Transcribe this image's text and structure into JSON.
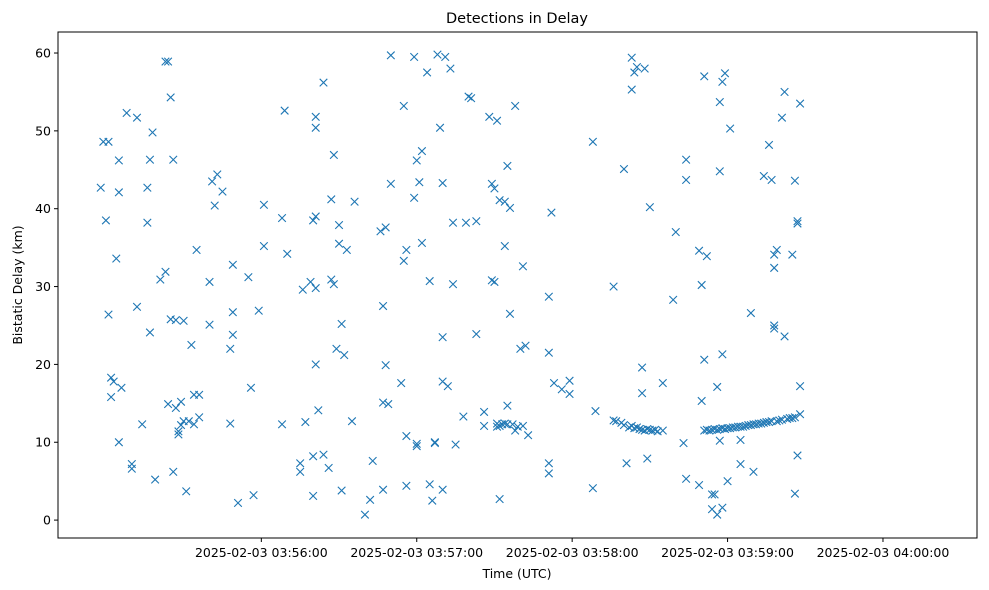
{
  "chart_data": {
    "type": "scatter",
    "title": "Detections in Delay",
    "xlabel": "Time (UTC)",
    "ylabel": "Bistatic Delay (km)",
    "x_unit": "seconds after 2025-02-03 03:55:00 (UTC)",
    "xlim": [
      -18.5,
      336.3
    ],
    "ylim": [
      -2.3,
      62.7
    ],
    "x_ticks": [
      {
        "value": 60,
        "label": "2025-02-03 03:56:00"
      },
      {
        "value": 120,
        "label": "2025-02-03 03:57:00"
      },
      {
        "value": 180,
        "label": "2025-02-03 03:58:00"
      },
      {
        "value": 240,
        "label": "2025-02-03 03:59:00"
      },
      {
        "value": 300,
        "label": "2025-02-03 04:00:00"
      }
    ],
    "y_ticks": [
      0,
      10,
      20,
      30,
      40,
      50,
      60
    ],
    "grid": false,
    "marker": "x",
    "color": "#1f77b4",
    "points": [
      [
        -2,
        42.7
      ],
      [
        -1,
        48.6
      ],
      [
        0,
        38.5
      ],
      [
        1,
        26.4
      ],
      [
        1,
        48.6
      ],
      [
        2,
        18.3
      ],
      [
        2,
        15.8
      ],
      [
        3,
        17.8
      ],
      [
        4,
        33.6
      ],
      [
        5,
        46.2
      ],
      [
        5,
        42.1
      ],
      [
        5,
        10.0
      ],
      [
        6,
        17.0
      ],
      [
        8,
        52.3
      ],
      [
        10,
        7.2
      ],
      [
        10,
        6.6
      ],
      [
        12,
        51.7
      ],
      [
        12,
        27.4
      ],
      [
        14,
        12.3
      ],
      [
        16,
        42.7
      ],
      [
        16,
        38.2
      ],
      [
        17,
        46.3
      ],
      [
        17,
        24.1
      ],
      [
        18,
        49.8
      ],
      [
        19,
        5.2
      ],
      [
        21,
        30.9
      ],
      [
        23,
        31.9
      ],
      [
        23,
        58.9
      ],
      [
        24,
        58.9
      ],
      [
        24,
        14.9
      ],
      [
        25,
        54.3
      ],
      [
        25,
        25.8
      ],
      [
        26,
        46.3
      ],
      [
        26,
        6.2
      ],
      [
        27,
        25.7
      ],
      [
        27,
        14.4
      ],
      [
        28,
        11.4
      ],
      [
        28,
        11.0
      ],
      [
        29,
        12.2
      ],
      [
        29,
        15.2
      ],
      [
        30,
        25.6
      ],
      [
        30,
        12.7
      ],
      [
        31,
        3.7
      ],
      [
        32,
        12.7
      ],
      [
        33,
        22.5
      ],
      [
        34,
        16.1
      ],
      [
        34,
        12.3
      ],
      [
        35,
        34.7
      ],
      [
        36,
        13.2
      ],
      [
        36,
        16.1
      ],
      [
        40,
        30.6
      ],
      [
        40,
        25.1
      ],
      [
        41,
        43.5
      ],
      [
        42,
        40.4
      ],
      [
        43,
        44.4
      ],
      [
        45,
        42.2
      ],
      [
        48,
        12.4
      ],
      [
        48,
        22.0
      ],
      [
        49,
        32.8
      ],
      [
        49,
        26.7
      ],
      [
        49,
        23.8
      ],
      [
        51,
        2.2
      ],
      [
        55,
        31.2
      ],
      [
        56,
        17.0
      ],
      [
        57,
        3.2
      ],
      [
        59,
        26.9
      ],
      [
        61,
        40.5
      ],
      [
        61,
        35.2
      ],
      [
        68,
        38.8
      ],
      [
        68,
        12.3
      ],
      [
        69,
        52.6
      ],
      [
        70,
        34.2
      ],
      [
        75,
        7.3
      ],
      [
        75,
        6.2
      ],
      [
        76,
        29.6
      ],
      [
        77,
        12.6
      ],
      [
        79,
        30.6
      ],
      [
        80,
        38.5
      ],
      [
        80,
        8.2
      ],
      [
        80,
        3.1
      ],
      [
        81,
        39.0
      ],
      [
        81,
        51.8
      ],
      [
        81,
        50.4
      ],
      [
        81,
        29.8
      ],
      [
        81,
        20.0
      ],
      [
        82,
        14.1
      ],
      [
        84,
        56.2
      ],
      [
        84,
        8.4
      ],
      [
        86,
        6.7
      ],
      [
        87,
        41.2
      ],
      [
        87,
        30.9
      ],
      [
        88,
        30.3
      ],
      [
        88,
        46.9
      ],
      [
        89,
        22.0
      ],
      [
        90,
        37.9
      ],
      [
        90,
        35.5
      ],
      [
        91,
        25.2
      ],
      [
        91,
        3.8
      ],
      [
        92,
        21.2
      ],
      [
        93,
        34.7
      ],
      [
        95,
        12.7
      ],
      [
        96,
        40.9
      ],
      [
        100,
        0.7
      ],
      [
        102,
        2.6
      ],
      [
        103,
        7.6
      ],
      [
        106,
        37.1
      ],
      [
        107,
        27.5
      ],
      [
        107,
        15.1
      ],
      [
        107,
        3.9
      ],
      [
        108,
        37.6
      ],
      [
        108,
        19.9
      ],
      [
        109,
        14.9
      ],
      [
        110,
        59.7
      ],
      [
        110,
        43.2
      ],
      [
        114,
        17.6
      ],
      [
        115,
        53.2
      ],
      [
        115,
        33.3
      ],
      [
        116,
        34.7
      ],
      [
        116,
        10.8
      ],
      [
        116,
        4.4
      ],
      [
        119,
        59.5
      ],
      [
        119,
        41.4
      ],
      [
        120,
        46.2
      ],
      [
        120,
        9.8
      ],
      [
        120,
        9.5
      ],
      [
        121,
        43.4
      ],
      [
        122,
        47.4
      ],
      [
        122,
        35.6
      ],
      [
        124,
        57.5
      ],
      [
        125,
        30.7
      ],
      [
        125,
        4.6
      ],
      [
        126,
        2.5
      ],
      [
        127,
        10.0
      ],
      [
        127,
        9.9
      ],
      [
        128,
        59.8
      ],
      [
        129,
        50.4
      ],
      [
        130,
        43.3
      ],
      [
        130,
        23.5
      ],
      [
        130,
        17.8
      ],
      [
        130,
        3.9
      ],
      [
        131,
        59.5
      ],
      [
        132,
        17.2
      ],
      [
        133,
        58.0
      ],
      [
        134,
        38.2
      ],
      [
        134,
        30.3
      ],
      [
        135,
        9.7
      ],
      [
        138,
        13.3
      ],
      [
        139,
        38.2
      ],
      [
        140,
        54.4
      ],
      [
        141,
        54.2
      ],
      [
        143,
        38.4
      ],
      [
        143,
        23.9
      ],
      [
        146,
        13.9
      ],
      [
        146,
        12.1
      ],
      [
        148,
        51.8
      ],
      [
        149,
        43.2
      ],
      [
        149,
        30.8
      ],
      [
        150,
        30.6
      ],
      [
        150,
        42.6
      ],
      [
        151,
        12.0
      ],
      [
        151,
        12.4
      ],
      [
        151,
        51.3
      ],
      [
        152,
        41.1
      ],
      [
        152,
        12.1
      ],
      [
        152,
        2.7
      ],
      [
        153,
        12.3
      ],
      [
        154,
        40.9
      ],
      [
        154,
        35.2
      ],
      [
        154,
        12.4
      ],
      [
        155,
        12.3
      ],
      [
        155,
        45.5
      ],
      [
        155,
        14.7
      ],
      [
        156,
        40.1
      ],
      [
        156,
        26.5
      ],
      [
        157,
        12.3
      ],
      [
        158,
        53.2
      ],
      [
        158,
        11.5
      ],
      [
        159,
        12.0
      ],
      [
        160,
        22.0
      ],
      [
        161,
        32.6
      ],
      [
        161,
        12.1
      ],
      [
        162,
        22.4
      ],
      [
        163,
        10.9
      ],
      [
        171,
        28.7
      ],
      [
        171,
        21.5
      ],
      [
        171,
        7.3
      ],
      [
        171,
        6.0
      ],
      [
        172,
        39.5
      ],
      [
        173,
        17.6
      ],
      [
        176,
        16.8
      ],
      [
        179,
        17.9
      ],
      [
        179,
        16.2
      ],
      [
        188,
        48.6
      ],
      [
        188,
        4.1
      ],
      [
        189,
        14.0
      ],
      [
        196,
        30.0
      ],
      [
        196,
        12.8
      ],
      [
        197,
        12.7
      ],
      [
        199,
        12.5
      ],
      [
        200,
        45.1
      ],
      [
        200,
        12.2
      ],
      [
        201,
        7.3
      ],
      [
        202,
        11.9
      ],
      [
        203,
        59.4
      ],
      [
        203,
        55.3
      ],
      [
        203,
        12.1
      ],
      [
        204,
        57.5
      ],
      [
        204,
        11.8
      ],
      [
        205,
        58.2
      ],
      [
        205,
        11.9
      ],
      [
        206,
        11.7
      ],
      [
        207,
        19.6
      ],
      [
        207,
        16.3
      ],
      [
        207,
        11.6
      ],
      [
        208,
        58.0
      ],
      [
        208,
        11.5
      ],
      [
        209,
        11.7
      ],
      [
        209,
        7.9
      ],
      [
        210,
        40.2
      ],
      [
        210,
        11.6
      ],
      [
        211,
        11.5
      ],
      [
        212,
        11.6
      ],
      [
        213,
        11.4
      ],
      [
        215,
        11.5
      ],
      [
        215,
        17.6
      ],
      [
        219,
        28.3
      ],
      [
        220,
        37.0
      ],
      [
        223,
        9.9
      ],
      [
        224,
        46.3
      ],
      [
        224,
        43.7
      ],
      [
        224,
        5.3
      ],
      [
        229,
        34.6
      ],
      [
        229,
        4.5
      ],
      [
        230,
        30.2
      ],
      [
        230,
        15.3
      ],
      [
        231,
        57.0
      ],
      [
        231,
        11.5
      ],
      [
        231,
        20.6
      ],
      [
        232,
        33.9
      ],
      [
        232,
        11.6
      ],
      [
        233,
        11.5
      ],
      [
        234,
        11.6
      ],
      [
        234,
        3.3
      ],
      [
        234,
        1.4
      ],
      [
        235,
        11.7
      ],
      [
        235,
        3.3
      ],
      [
        236,
        11.6
      ],
      [
        236,
        17.1
      ],
      [
        236,
        0.7
      ],
      [
        237,
        53.7
      ],
      [
        237,
        44.8
      ],
      [
        237,
        10.2
      ],
      [
        237,
        11.7
      ],
      [
        238,
        56.3
      ],
      [
        238,
        21.3
      ],
      [
        238,
        11.8
      ],
      [
        238,
        1.6
      ],
      [
        239,
        57.4
      ],
      [
        239,
        11.7
      ],
      [
        240,
        11.8
      ],
      [
        240,
        5.0
      ],
      [
        241,
        50.3
      ],
      [
        241,
        11.8
      ],
      [
        242,
        11.9
      ],
      [
        243,
        11.9
      ],
      [
        244,
        12.0
      ],
      [
        245,
        12.0
      ],
      [
        245,
        10.3
      ],
      [
        245,
        7.2
      ],
      [
        246,
        12.0
      ],
      [
        247,
        12.1
      ],
      [
        248,
        12.2
      ],
      [
        249,
        12.2
      ],
      [
        249,
        26.6
      ],
      [
        250,
        12.3
      ],
      [
        250,
        6.2
      ],
      [
        251,
        12.3
      ],
      [
        252,
        12.4
      ],
      [
        253,
        12.4
      ],
      [
        254,
        44.2
      ],
      [
        254,
        12.5
      ],
      [
        255,
        12.6
      ],
      [
        256,
        48.2
      ],
      [
        256,
        12.6
      ],
      [
        257,
        43.7
      ],
      [
        257,
        12.7
      ],
      [
        258,
        34.1
      ],
      [
        258,
        32.4
      ],
      [
        258,
        25.0
      ],
      [
        258,
        24.6
      ],
      [
        259,
        34.7
      ],
      [
        259,
        12.7
      ],
      [
        260,
        12.8
      ],
      [
        261,
        51.7
      ],
      [
        261,
        12.9
      ],
      [
        262,
        23.6
      ],
      [
        262,
        55.0
      ],
      [
        263,
        13.0
      ],
      [
        264,
        13.1
      ],
      [
        265,
        13.1
      ],
      [
        265,
        34.1
      ],
      [
        266,
        13.2
      ],
      [
        266,
        43.6
      ],
      [
        266,
        3.4
      ],
      [
        267,
        38.1
      ],
      [
        267,
        8.3
      ],
      [
        267,
        38.4
      ],
      [
        268,
        13.6
      ],
      [
        268,
        53.5
      ],
      [
        268,
        17.2
      ]
    ]
  }
}
